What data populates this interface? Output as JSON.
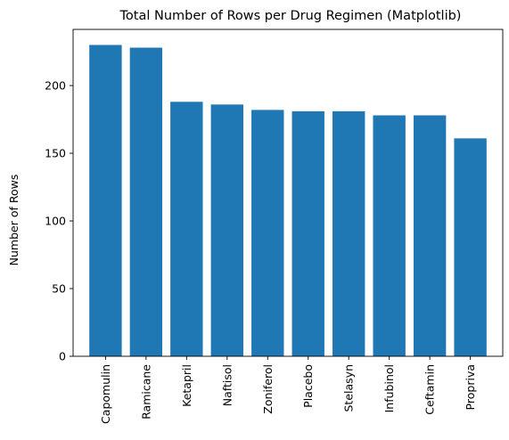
{
  "chart_data": {
    "type": "bar",
    "title": "Total Number of Rows per Drug Regimen (Matplotlib)",
    "xlabel": "",
    "ylabel": "Number of Rows",
    "categories": [
      "Capomulin",
      "Ramicane",
      "Ketapril",
      "Naftisol",
      "Zoniferol",
      "Placebo",
      "Stelasyn",
      "Infubinol",
      "Ceftamin",
      "Propriva"
    ],
    "values": [
      230,
      228,
      188,
      186,
      182,
      181,
      181,
      178,
      178,
      161
    ],
    "ylim": [
      0,
      241.5
    ],
    "yticks": [
      0,
      50,
      100,
      150,
      200
    ],
    "bar_color": "#1f77b4",
    "grid": false,
    "legend": false
  }
}
